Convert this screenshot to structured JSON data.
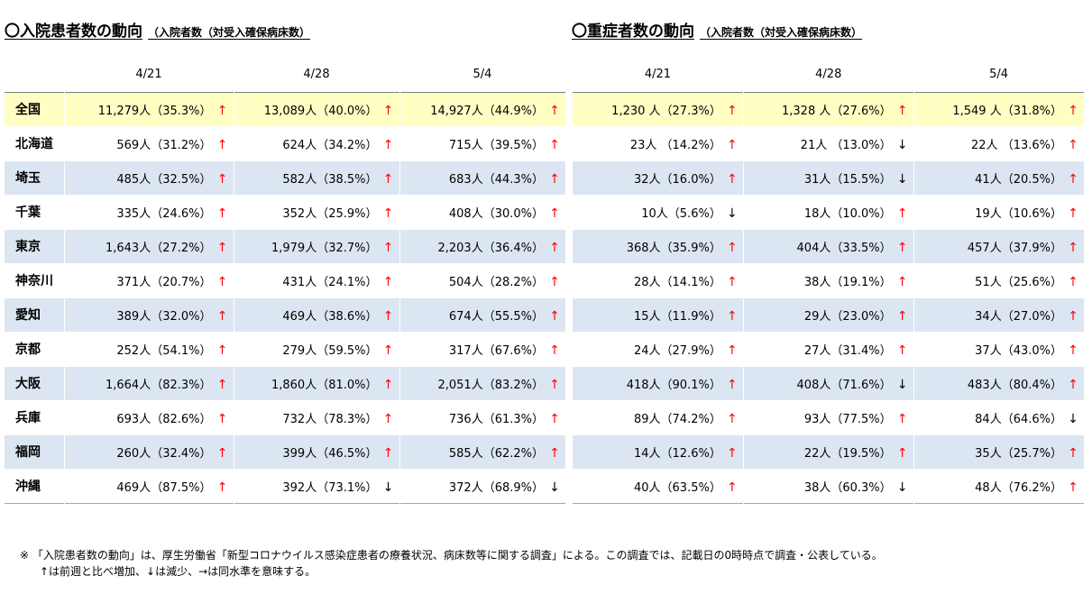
{
  "left": {
    "title": "〇入院患者数の動向",
    "subtitle": "（入院者数（対受入確保病床数）",
    "dates": [
      "4/21",
      "4/28",
      "5/4"
    ],
    "rows": [
      {
        "pref": "全国",
        "cells": [
          {
            "t": "11,279人（35.3%）",
            "a": "↑",
            "d": "up"
          },
          {
            "t": "13,089人（40.0%）",
            "a": "↑",
            "d": "up"
          },
          {
            "t": "14,927人（44.9%）",
            "a": "↑",
            "d": "up"
          }
        ]
      },
      {
        "pref": "北海道",
        "cells": [
          {
            "t": "569人（31.2%）",
            "a": "↑",
            "d": "up"
          },
          {
            "t": "624人（34.2%）",
            "a": "↑",
            "d": "up"
          },
          {
            "t": "715人（39.5%）",
            "a": "↑",
            "d": "up"
          }
        ]
      },
      {
        "pref": "埼玉",
        "cells": [
          {
            "t": "485人（32.5%）",
            "a": "↑",
            "d": "up"
          },
          {
            "t": "582人（38.5%）",
            "a": "↑",
            "d": "up"
          },
          {
            "t": "683人（44.3%）",
            "a": "↑",
            "d": "up"
          }
        ]
      },
      {
        "pref": "千葉",
        "cells": [
          {
            "t": "335人（24.6%）",
            "a": "↑",
            "d": "up"
          },
          {
            "t": "352人（25.9%）",
            "a": "↑",
            "d": "up"
          },
          {
            "t": "408人（30.0%）",
            "a": "↑",
            "d": "up"
          }
        ]
      },
      {
        "pref": "東京",
        "cells": [
          {
            "t": "1,643人（27.2%）",
            "a": "↑",
            "d": "up"
          },
          {
            "t": "1,979人（32.7%）",
            "a": "↑",
            "d": "up"
          },
          {
            "t": "2,203人（36.4%）",
            "a": "↑",
            "d": "up"
          }
        ]
      },
      {
        "pref": "神奈川",
        "cells": [
          {
            "t": "371人（20.7%）",
            "a": "↑",
            "d": "up"
          },
          {
            "t": "431人（24.1%）",
            "a": "↑",
            "d": "up"
          },
          {
            "t": "504人（28.2%）",
            "a": "↑",
            "d": "up"
          }
        ]
      },
      {
        "pref": "愛知",
        "cells": [
          {
            "t": "389人（32.0%）",
            "a": "↑",
            "d": "up"
          },
          {
            "t": "469人（38.6%）",
            "a": "↑",
            "d": "up"
          },
          {
            "t": "674人（55.5%）",
            "a": "↑",
            "d": "up"
          }
        ]
      },
      {
        "pref": "京都",
        "cells": [
          {
            "t": "252人（54.1%）",
            "a": "↑",
            "d": "up"
          },
          {
            "t": "279人（59.5%）",
            "a": "↑",
            "d": "up"
          },
          {
            "t": "317人（67.6%）",
            "a": "↑",
            "d": "up"
          }
        ]
      },
      {
        "pref": "大阪",
        "cells": [
          {
            "t": "1,664人（82.3%）",
            "a": "↑",
            "d": "up"
          },
          {
            "t": "1,860人（81.0%）",
            "a": "↑",
            "d": "up"
          },
          {
            "t": "2,051人（83.2%）",
            "a": "↑",
            "d": "up"
          }
        ]
      },
      {
        "pref": "兵庫",
        "cells": [
          {
            "t": "693人（82.6%）",
            "a": "↑",
            "d": "up"
          },
          {
            "t": "732人（78.3%）",
            "a": "↑",
            "d": "up"
          },
          {
            "t": "736人（61.3%）",
            "a": "↑",
            "d": "up"
          }
        ]
      },
      {
        "pref": "福岡",
        "cells": [
          {
            "t": "260人（32.4%）",
            "a": "↑",
            "d": "up"
          },
          {
            "t": "399人（46.5%）",
            "a": "↑",
            "d": "up"
          },
          {
            "t": "585人（62.2%）",
            "a": "↑",
            "d": "up"
          }
        ]
      },
      {
        "pref": "沖縄",
        "cells": [
          {
            "t": "469人（87.5%）",
            "a": "↑",
            "d": "up"
          },
          {
            "t": "392人（73.1%）",
            "a": "↓",
            "d": "down"
          },
          {
            "t": "372人（68.9%）",
            "a": "↓",
            "d": "down"
          }
        ]
      }
    ]
  },
  "right": {
    "title": "〇重症者数の動向",
    "subtitle": "（入院者数（対受入確保病床数）",
    "dates": [
      "4/21",
      "4/28",
      "5/4"
    ],
    "rows": [
      {
        "cells": [
          {
            "t": "1,230 人（27.3%）",
            "a": "↑",
            "d": "up"
          },
          {
            "t": "1,328 人（27.6%）",
            "a": "↑",
            "d": "up"
          },
          {
            "t": "1,549 人（31.8%）",
            "a": "↑",
            "d": "up"
          }
        ]
      },
      {
        "cells": [
          {
            "t": "23人 （14.2%）",
            "a": "↑",
            "d": "up"
          },
          {
            "t": "21人 （13.0%）",
            "a": "↓",
            "d": "down"
          },
          {
            "t": "22人 （13.6%）",
            "a": "↑",
            "d": "up"
          }
        ]
      },
      {
        "cells": [
          {
            "t": "32人（16.0%）",
            "a": "↑",
            "d": "up"
          },
          {
            "t": "31人（15.5%）",
            "a": "↓",
            "d": "down"
          },
          {
            "t": "41人（20.5%）",
            "a": "↑",
            "d": "up"
          }
        ]
      },
      {
        "cells": [
          {
            "t": "10人（5.6%）",
            "a": "↓",
            "d": "down"
          },
          {
            "t": "18人（10.0%）",
            "a": "↑",
            "d": "up"
          },
          {
            "t": "19人（10.6%）",
            "a": "↑",
            "d": "up"
          }
        ]
      },
      {
        "cells": [
          {
            "t": "368人（35.9%）",
            "a": "↑",
            "d": "up"
          },
          {
            "t": "404人（33.5%）",
            "a": "↑",
            "d": "up"
          },
          {
            "t": "457人（37.9%）",
            "a": "↑",
            "d": "up"
          }
        ]
      },
      {
        "cells": [
          {
            "t": "28人（14.1%）",
            "a": "↑",
            "d": "up"
          },
          {
            "t": "38人（19.1%）",
            "a": "↑",
            "d": "up"
          },
          {
            "t": "51人（25.6%）",
            "a": "↑",
            "d": "up"
          }
        ]
      },
      {
        "cells": [
          {
            "t": "15人（11.9%）",
            "a": "↑",
            "d": "up"
          },
          {
            "t": "29人（23.0%）",
            "a": "↑",
            "d": "up"
          },
          {
            "t": "34人（27.0%）",
            "a": "↑",
            "d": "up"
          }
        ]
      },
      {
        "cells": [
          {
            "t": "24人（27.9%）",
            "a": "↑",
            "d": "up"
          },
          {
            "t": "27人（31.4%）",
            "a": "↑",
            "d": "up"
          },
          {
            "t": "37人（43.0%）",
            "a": "↑",
            "d": "up"
          }
        ]
      },
      {
        "cells": [
          {
            "t": "418人（90.1%）",
            "a": "↑",
            "d": "up"
          },
          {
            "t": "408人（71.6%）",
            "a": "↓",
            "d": "down"
          },
          {
            "t": "483人（80.4%）",
            "a": "↑",
            "d": "up"
          }
        ]
      },
      {
        "cells": [
          {
            "t": "89人（74.2%）",
            "a": "↑",
            "d": "up"
          },
          {
            "t": "93人（77.5%）",
            "a": "↑",
            "d": "up"
          },
          {
            "t": "84人（64.6%）",
            "a": "↓",
            "d": "down"
          }
        ]
      },
      {
        "cells": [
          {
            "t": "14人（12.6%）",
            "a": "↑",
            "d": "up"
          },
          {
            "t": "22人（19.5%）",
            "a": "↑",
            "d": "up"
          },
          {
            "t": "35人（25.7%）",
            "a": "↑",
            "d": "up"
          }
        ]
      },
      {
        "cells": [
          {
            "t": "40人（63.5%）",
            "a": "↑",
            "d": "up"
          },
          {
            "t": "38人（60.3%）",
            "a": "↓",
            "d": "down"
          },
          {
            "t": "48人（76.2%）",
            "a": "↑",
            "d": "up"
          }
        ]
      }
    ]
  },
  "colors": {
    "national_row": "#ffffc4",
    "shaded_row": "#dce6f2",
    "arrow_up": "#ff0000",
    "arrow_down": "#000000"
  },
  "notes": {
    "line1": "※ 「入院患者数の動向」は、厚生労働省「新型コロナウイルス感染症患者の療養状況、病床数等に関する調査」による。この調査では、記載日の0時時点で調査・公表している。",
    "line2": "↑は前週と比べ増加、↓は減少、→は同水準を意味する。"
  }
}
